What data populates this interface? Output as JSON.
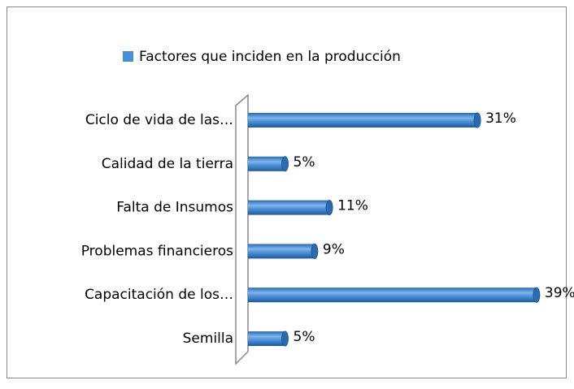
{
  "chart_data": {
    "type": "bar",
    "orientation": "horizontal",
    "series": [
      {
        "name": "Factores que inciden en la producción",
        "color": "#4a8fd6",
        "values": [
          31,
          5,
          11,
          9,
          39,
          5
        ],
        "value_labels": [
          "31%",
          "5%",
          "11%",
          "9%",
          "39%",
          "5%"
        ]
      }
    ],
    "categories": [
      "Ciclo de vida de las…",
      "Calidad de la tierra",
      "Falta de Insumos",
      "Problemas financieros",
      "Capacitación de los…",
      "Semilla"
    ]
  }
}
